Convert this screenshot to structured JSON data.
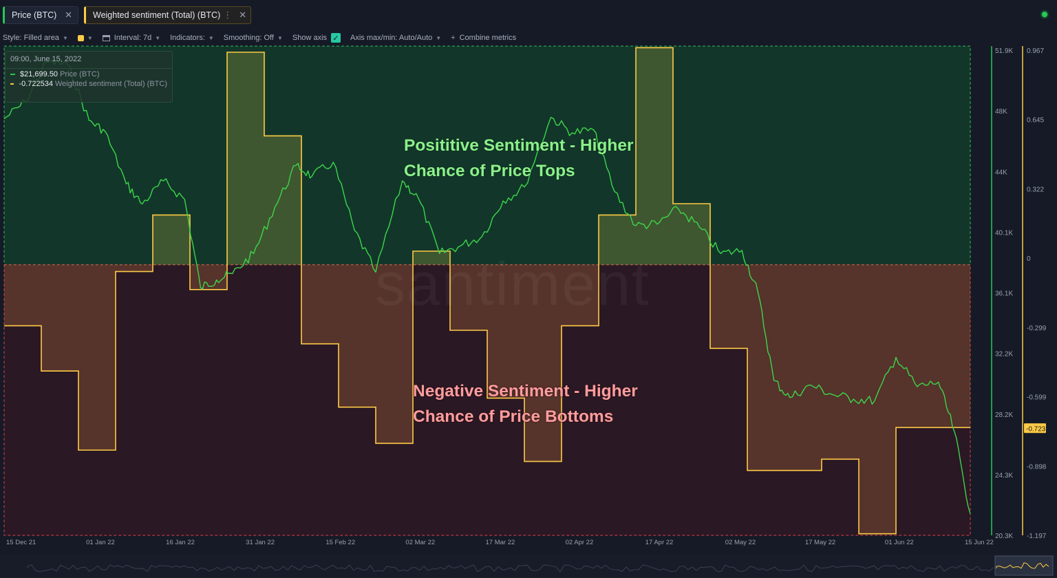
{
  "tabs": [
    {
      "label": "Price (BTC)",
      "color": "#26c953"
    },
    {
      "label": "Weighted sentiment (Total) (BTC)",
      "color": "#ffcb47"
    }
  ],
  "toolbar": {
    "style": "Style: Filled area",
    "interval": "Interval: 7d",
    "indicators": "Indicators:",
    "smoothing": "Smoothing: Off",
    "show_axis": "Show axis",
    "axis_minmax": "Axis max/min: Auto/Auto",
    "combine": "Combine metrics"
  },
  "tooltip": {
    "date": "09:00, June 15, 2022",
    "price_value": "$21,699.50",
    "price_name": "Price (BTC)",
    "sentiment_value": "-0.722534",
    "sentiment_name": "Weighted sentiment (Total) (BTC)"
  },
  "annotations": {
    "positive_line1": "Posititive Sentiment - Higher",
    "positive_line2": "Chance of Price Tops",
    "negative_line1": "Negative Sentiment - Higher",
    "negative_line2": "Chance of Price Bottoms"
  },
  "watermark": "santiment",
  "chart_data": {
    "type": "line",
    "x_start": "2021-12-15",
    "x_end": "2022-06-15",
    "x_tick_labels": [
      "15 Dec 21",
      "01 Jan 22",
      "16 Jan 22",
      "31 Jan 22",
      "15 Feb 22",
      "02 Mar 22",
      "17 Mar 22",
      "02 Apr 22",
      "17 Apr 22",
      "02 May 22",
      "17 May 22",
      "01 Jun 22",
      "15 Jun 22"
    ],
    "price_axis": {
      "ticks": [
        "51.9K",
        "48K",
        "44K",
        "40.1K",
        "36.1K",
        "32.2K",
        "28.2K",
        "24.3K",
        "20.3K"
      ],
      "min": 20300,
      "max": 51900
    },
    "sentiment_axis": {
      "ticks": [
        "0.967",
        "0.645",
        "0.322",
        "0",
        "-0.299",
        "-0.599",
        "-0.898",
        "-1.197"
      ],
      "min": -1.197,
      "max": 0.967,
      "current_label": "-0.723"
    },
    "series": [
      {
        "name": "Weighted sentiment (Total) (BTC)",
        "style": "step-filled-area",
        "color": "#ffcb47",
        "x": [
          "2021-12-15",
          "2021-12-22",
          "2021-12-29",
          "2022-01-05",
          "2022-01-12",
          "2022-01-19",
          "2022-01-26",
          "2022-02-02",
          "2022-02-09",
          "2022-02-16",
          "2022-02-23",
          "2022-03-02",
          "2022-03-09",
          "2022-03-16",
          "2022-03-23",
          "2022-03-30",
          "2022-04-06",
          "2022-04-13",
          "2022-04-20",
          "2022-04-27",
          "2022-05-04",
          "2022-05-11",
          "2022-05-18",
          "2022-05-25",
          "2022-06-01",
          "2022-06-08",
          "2022-06-15"
        ],
        "values": [
          -0.27,
          -0.47,
          -0.82,
          -0.03,
          0.22,
          -0.11,
          0.94,
          0.57,
          -0.35,
          -0.63,
          -0.79,
          0.06,
          -0.29,
          -0.59,
          -0.87,
          -0.27,
          0.22,
          0.96,
          0.27,
          -0.37,
          -0.91,
          -0.91,
          -0.86,
          -1.19,
          -0.72,
          -0.72,
          -0.72
        ]
      },
      {
        "name": "Price (BTC)",
        "style": "line",
        "color": "#3dd64a",
        "x": [
          "2021-12-15",
          "2021-12-19",
          "2021-12-23",
          "2021-12-27",
          "2021-12-31",
          "2022-01-03",
          "2022-01-07",
          "2022-01-10",
          "2022-01-14",
          "2022-01-18",
          "2022-01-21",
          "2022-01-24",
          "2022-01-27",
          "2022-01-31",
          "2022-02-04",
          "2022-02-08",
          "2022-02-11",
          "2022-02-15",
          "2022-02-19",
          "2022-02-23",
          "2022-02-28",
          "2022-03-03",
          "2022-03-07",
          "2022-03-11",
          "2022-03-15",
          "2022-03-19",
          "2022-03-23",
          "2022-03-28",
          "2022-04-01",
          "2022-04-05",
          "2022-04-09",
          "2022-04-13",
          "2022-04-17",
          "2022-04-21",
          "2022-04-25",
          "2022-04-29",
          "2022-05-03",
          "2022-05-06",
          "2022-05-09",
          "2022-05-12",
          "2022-05-16",
          "2022-05-20",
          "2022-05-24",
          "2022-05-28",
          "2022-06-01",
          "2022-06-05",
          "2022-06-09",
          "2022-06-12",
          "2022-06-15"
        ],
        "values": [
          47200,
          48300,
          50900,
          50700,
          47100,
          46400,
          43000,
          41700,
          43200,
          42000,
          36300,
          36800,
          37200,
          38500,
          41500,
          44200,
          43500,
          44400,
          40000,
          37300,
          43200,
          42100,
          38500,
          39000,
          39600,
          41900,
          42800,
          47300,
          46300,
          46500,
          42500,
          40300,
          40400,
          41400,
          40200,
          38500,
          38700,
          36000,
          30300,
          29200,
          30000,
          29400,
          29100,
          29000,
          31800,
          29900,
          30200,
          27000,
          21700
        ]
      }
    ]
  }
}
